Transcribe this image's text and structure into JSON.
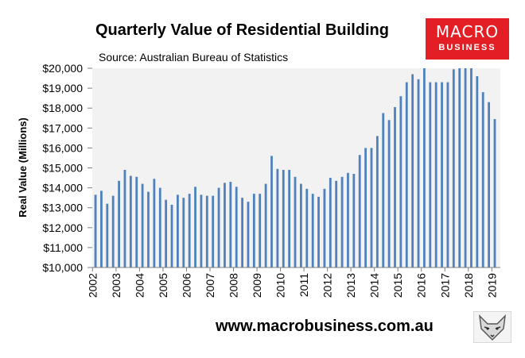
{
  "brand": {
    "logo_top": "MACRO",
    "logo_bottom": "BUSINESS",
    "footer_url": "www.macrobusiness.com.au",
    "accent": "#e31e24"
  },
  "chart_data": {
    "type": "bar",
    "title": "Quarterly Value of Residential Building",
    "subtitle": "Source: Australian Bureau of Statistics",
    "ylabel": "Real Value (Millions)",
    "xlabel": "",
    "ylim": [
      10000,
      20000
    ],
    "yticks": [
      10000,
      11000,
      12000,
      13000,
      14000,
      15000,
      16000,
      17000,
      18000,
      19000,
      20000
    ],
    "ytick_labels": [
      "$10,000",
      "$11,000",
      "$12,000",
      "$13,000",
      "$14,000",
      "$15,000",
      "$16,000",
      "$17,000",
      "$18,000",
      "$19,000",
      "$20,000"
    ],
    "xtick_labels": [
      "2002",
      "2003",
      "2004",
      "2005",
      "2006",
      "2007",
      "2008",
      "2009",
      "2010",
      "2011",
      "2012",
      "2013",
      "2014",
      "2015",
      "2016",
      "2017",
      "2018",
      "2019"
    ],
    "first_period": "2002 Q1",
    "grid": false,
    "bar_color": "#4f81bd",
    "plot_background": "#f2f2f2",
    "values": [
      13650,
      13850,
      13200,
      13600,
      14350,
      14900,
      14600,
      14550,
      14200,
      13800,
      14450,
      14000,
      13400,
      13150,
      13650,
      13500,
      13700,
      14050,
      13650,
      13600,
      13600,
      14000,
      14250,
      14300,
      14050,
      13500,
      13300,
      13700,
      13700,
      14200,
      15600,
      14950,
      14900,
      14900,
      14550,
      14200,
      13950,
      13700,
      13550,
      13950,
      14500,
      14350,
      14550,
      14750,
      14700,
      15650,
      16000,
      16000,
      16600,
      17750,
      17400,
      18050,
      18600,
      19300,
      19700,
      19450,
      20050,
      19300,
      19300,
      19300,
      19300,
      19950,
      20050,
      20100,
      20050,
      19600,
      18800,
      18300,
      17450
    ]
  }
}
